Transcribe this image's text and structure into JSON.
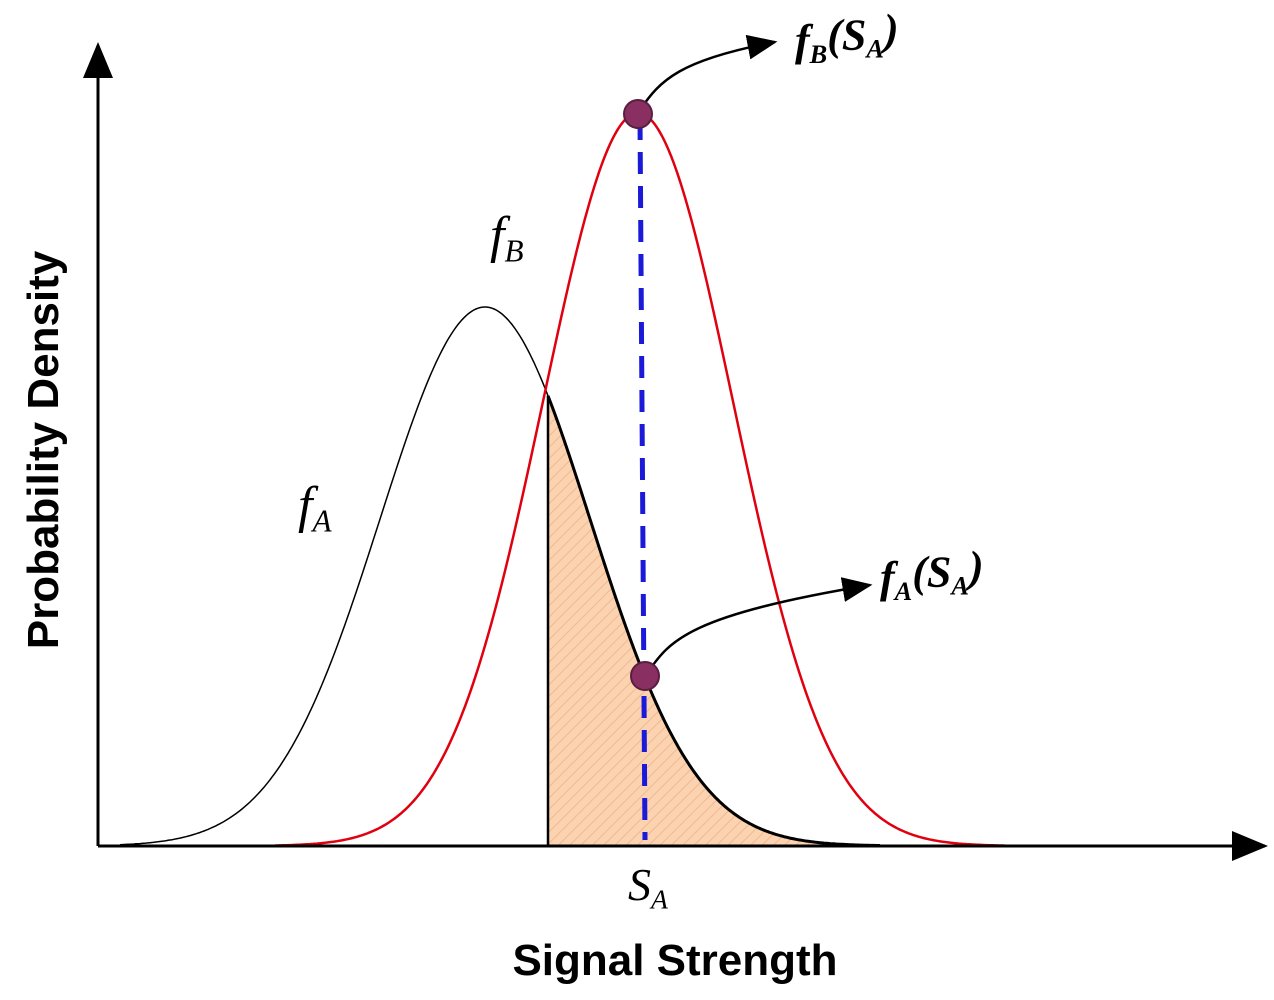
{
  "axes": {
    "y_label": "Probability Density",
    "x_label": "Signal Strength"
  },
  "curves": [
    {
      "parts": [
        {
          "text": "f",
          "sub": false
        },
        {
          "text": "A",
          "sub": true
        }
      ]
    },
    {
      "parts": [
        {
          "text": "f",
          "sub": false
        },
        {
          "text": "B",
          "sub": true
        }
      ]
    }
  ],
  "callouts": [
    {
      "parts": [
        {
          "text": "f",
          "sub": false
        },
        {
          "text": "B",
          "sub": true
        },
        {
          "text": "(S",
          "sub": false
        },
        {
          "text": "A",
          "sub": true
        },
        {
          "text": ")",
          "sub": false
        }
      ]
    },
    {
      "parts": [
        {
          "text": "f",
          "sub": false
        },
        {
          "text": "A",
          "sub": true
        },
        {
          "text": "(S",
          "sub": false
        },
        {
          "text": "A",
          "sub": true
        },
        {
          "text": ")",
          "sub": false
        }
      ]
    }
  ],
  "threshold": {
    "parts": [
      {
        "text": "S",
        "sub": false
      },
      {
        "text": "A",
        "sub": true
      }
    ]
  }
}
